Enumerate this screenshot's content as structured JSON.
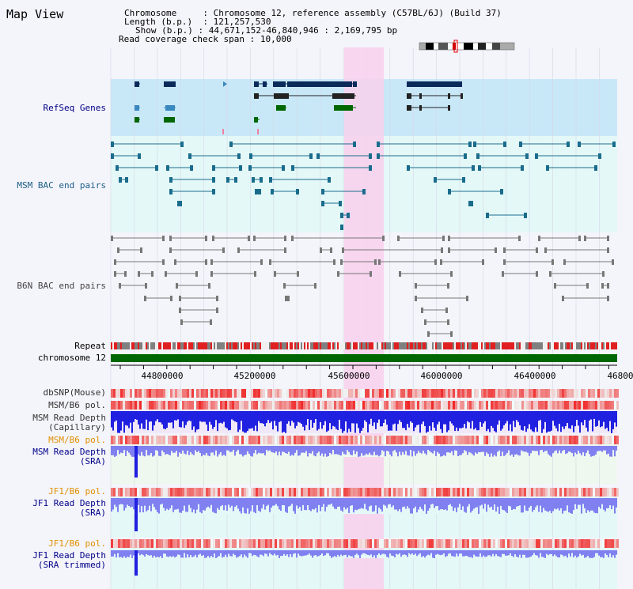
{
  "title": "Map View",
  "info": {
    "chromosome_key": "Chromosome",
    "chromosome_val": "Chromosome 12, reference assembly (C57BL/6J) (Build 37)",
    "length_key": "Length (b.p.)",
    "length_val": "121,257,530",
    "show_key": "Show (b.p.)",
    "show_val": "44,671,152-46,840,946 : 2,169,795 bp",
    "span_key": "Read coverage check span",
    "span_val": "10,000"
  },
  "tracks": {
    "refseq": "RefSeq Genes",
    "msm_bac": "MSM BAC end pairs",
    "b6n_bac": "B6N BAC end pairs",
    "repeat": "Repeat",
    "chromosome": "chromosome 12",
    "dbsnp": "dbSNP(Mouse)",
    "msm_b6_pol": "MSM/B6 pol.",
    "msm_depth_cap_1": "MSM Read Depth",
    "msm_depth_cap_2": "(Capillary)",
    "msm_b6_pol_2": "MSM/B6 pol.",
    "msm_depth_sra_1": "MSM Read Depth",
    "msm_depth_sra_2": "(SRA)",
    "jf1_b6_pol": "JF1/B6 pol.",
    "jf1_depth_1": "JF1 Read Depth",
    "jf1_depth_2": "(SRA)",
    "jf1_b6_pol_2": "JF1/B6 pol.",
    "jf1_trim_1": "JF1 Read Depth",
    "jf1_trim_2": "(SRA trimmed)"
  },
  "axis": {
    "ticks": [
      "44800000",
      "45200000",
      "45600000",
      "46000000",
      "46400000",
      "46800"
    ]
  },
  "colors": {
    "highlight": "#f8d0ec",
    "refseq_bg": "#c8e8f8",
    "bac_bg": "#e4f8f8",
    "chromosome": "#006600",
    "depth_blue": "#2020e0",
    "sra_blue": "#8080f0",
    "snp_red": "#f03030"
  }
}
